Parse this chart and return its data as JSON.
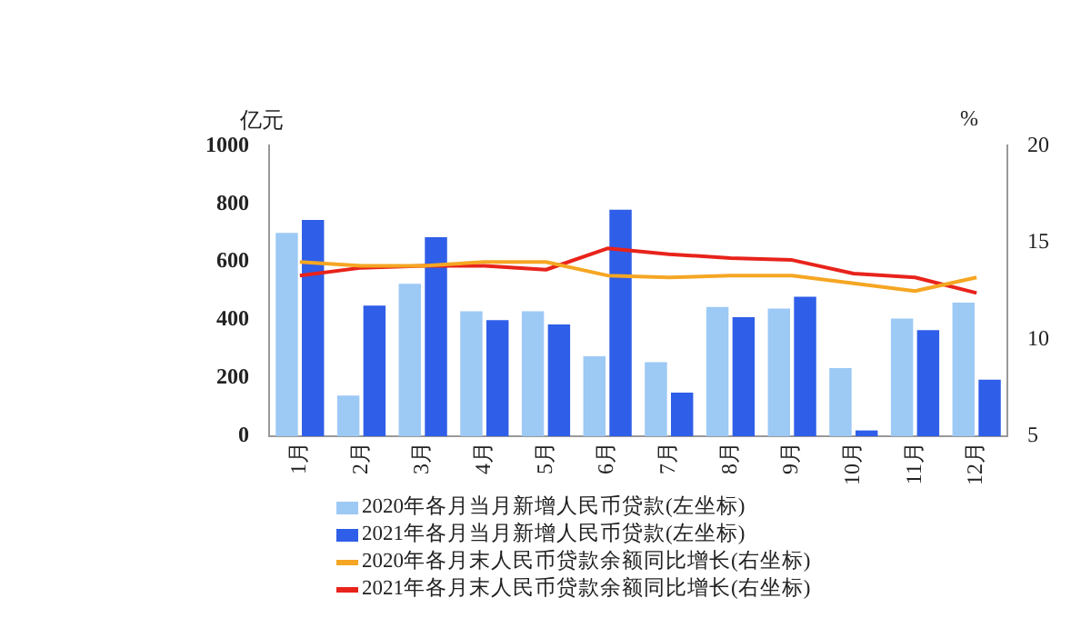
{
  "chart_data": {
    "type": "bar",
    "ylabel": "亿元",
    "y2label": "%",
    "categories": [
      "1月",
      "2月",
      "3月",
      "4月",
      "5月",
      "6月",
      "7月",
      "8月",
      "9月",
      "10月",
      "11月",
      "12月"
    ],
    "series": [
      {
        "name": "2020年各月当月新增人民币贷款(左坐标)",
        "color": "#9dc9f5",
        "values": [
          700,
          140,
          525,
          430,
          430,
          275,
          255,
          445,
          440,
          235,
          405,
          460
        ]
      },
      {
        "name": "2021年各月当月新增人民币贷款(左坐标)",
        "color": "#2f5ee8",
        "values": [
          745,
          450,
          685,
          400,
          385,
          780,
          150,
          410,
          480,
          20,
          365,
          195
        ]
      },
      {
        "name": "2020年各月末人民币贷款余额同比增长(右坐标)",
        "type": "line",
        "axis": "y2",
        "color": "#f5a623",
        "values": [
          14.0,
          13.8,
          13.8,
          14.0,
          14.0,
          13.3,
          13.2,
          13.3,
          13.3,
          12.9,
          12.5,
          13.2
        ]
      },
      {
        "name": "2021年各月末人民币贷款余额同比增长(右坐标)",
        "type": "line",
        "axis": "y2",
        "color": "#e8231b",
        "values": [
          13.3,
          13.7,
          13.8,
          13.8,
          13.6,
          14.7,
          14.4,
          14.2,
          14.1,
          13.4,
          13.2,
          12.4
        ]
      }
    ],
    "ylim": [
      0,
      1000
    ],
    "yticks": [
      0,
      200,
      400,
      600,
      800,
      1000
    ],
    "y2lim": [
      5,
      20
    ],
    "y2ticks": [
      5,
      10,
      15,
      20
    ],
    "grid": false,
    "legend": "bottom",
    "marker": "none"
  }
}
